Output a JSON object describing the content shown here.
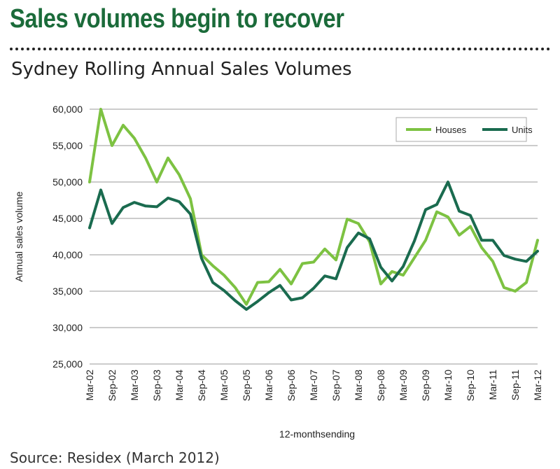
{
  "headline": "Sales volumes begin to recover",
  "source": "Source: Residex (March 2012)",
  "colors": {
    "houses": "#7dc242",
    "units": "#1a6b4f",
    "headline": "#1b6b3a",
    "grid": "#999999"
  },
  "chart_data": {
    "type": "line",
    "title": "Sydney Rolling Annual Sales Volumes",
    "xlabel": "12-monthsending",
    "ylabel": "Annual sales volume",
    "ylim": [
      25000,
      60000
    ],
    "yticks": [
      25000,
      30000,
      35000,
      40000,
      45000,
      50000,
      55000,
      60000
    ],
    "ytick_labels": [
      "25,000",
      "30,000",
      "35,000",
      "40,000",
      "45,000",
      "50,000",
      "55,000",
      "60,000"
    ],
    "x": [
      "Mar-02",
      "Jun-02",
      "Sep-02",
      "Dec-02",
      "Mar-03",
      "Jun-03",
      "Sep-03",
      "Dec-03",
      "Mar-04",
      "Jun-04",
      "Sep-04",
      "Dec-04",
      "Mar-05",
      "Jun-05",
      "Sep-05",
      "Dec-05",
      "Mar-06",
      "Jun-06",
      "Sep-06",
      "Dec-06",
      "Mar-07",
      "Jun-07",
      "Sep-07",
      "Dec-07",
      "Mar-08",
      "Jun-08",
      "Sep-08",
      "Dec-08",
      "Mar-09",
      "Jun-09",
      "Sep-09",
      "Dec-09",
      "Mar-10",
      "Jun-10",
      "Sep-10",
      "Dec-10",
      "Mar-11",
      "Jun-11",
      "Sep-11",
      "Dec-11",
      "Mar-12"
    ],
    "x_tick_labels": [
      "Mar-02",
      "Sep-02",
      "Mar-03",
      "Sep-03",
      "Mar-04",
      "Sep-04",
      "Mar-05",
      "Sep-05",
      "Mar-06",
      "Sep-06",
      "Mar-07",
      "Sep-07",
      "Mar-08",
      "Sep-08",
      "Mar-09",
      "Sep-09",
      "Mar-10",
      "Sep-10",
      "Mar-11",
      "Sep-11",
      "Mar-12"
    ],
    "grid": true,
    "legend_position": "top-right",
    "series": [
      {
        "name": "Houses",
        "color": "#7dc242",
        "values": [
          50000,
          60000,
          55000,
          57800,
          56000,
          53300,
          50000,
          53300,
          51000,
          47700,
          40000,
          38500,
          37200,
          35500,
          33200,
          36200,
          36300,
          38000,
          36000,
          38800,
          39000,
          40800,
          39300,
          44900,
          44300,
          41800,
          36000,
          37700,
          37200,
          39600,
          42000,
          45900,
          45200,
          42700,
          43900,
          41000,
          39100,
          35500,
          35000,
          36200,
          42000
        ]
      },
      {
        "name": "Units",
        "color": "#1a6b4f",
        "values": [
          43700,
          48900,
          44300,
          46500,
          47200,
          46700,
          46600,
          47800,
          47300,
          45600,
          39500,
          36200,
          35100,
          33700,
          32500,
          33600,
          34800,
          35800,
          33800,
          34100,
          35400,
          37100,
          36700,
          41000,
          43000,
          42200,
          38300,
          36400,
          38400,
          41900,
          46200,
          46900,
          50000,
          46000,
          45400,
          42000,
          42000,
          39900,
          39400,
          39100,
          40500
        ]
      }
    ]
  }
}
